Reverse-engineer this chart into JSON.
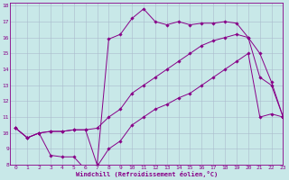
{
  "xlabel": "Windchill (Refroidissement éolien,°C)",
  "xlim": [
    -0.5,
    23
  ],
  "ylim": [
    8,
    18.2
  ],
  "yticks": [
    8,
    9,
    10,
    11,
    12,
    13,
    14,
    15,
    16,
    17,
    18
  ],
  "xticks": [
    0,
    1,
    2,
    3,
    4,
    5,
    6,
    7,
    8,
    9,
    10,
    11,
    12,
    13,
    14,
    15,
    16,
    17,
    18,
    19,
    20,
    21,
    22,
    23
  ],
  "bg_color": "#c8e8e8",
  "grid_color": "#aabbcc",
  "line_color": "#880088",
  "curve1_x": [
    0,
    1,
    2,
    3,
    4,
    5,
    6,
    7,
    8,
    9,
    10,
    11,
    12,
    13,
    14,
    15,
    16,
    17,
    18,
    19,
    20,
    21,
    22,
    23
  ],
  "curve1_y": [
    10.3,
    9.7,
    10.0,
    8.6,
    8.5,
    8.5,
    7.7,
    7.9,
    9.0,
    9.5,
    10.5,
    11.0,
    11.5,
    11.8,
    12.2,
    12.5,
    13.0,
    13.5,
    14.0,
    14.5,
    15.0,
    11.0,
    11.2,
    11.0
  ],
  "curve2_x": [
    0,
    1,
    2,
    3,
    4,
    5,
    6,
    7,
    8,
    9,
    10,
    11,
    12,
    13,
    14,
    15,
    16,
    17,
    18,
    19,
    20,
    21,
    22,
    23
  ],
  "curve2_y": [
    10.3,
    9.7,
    10.0,
    10.1,
    10.1,
    10.2,
    10.2,
    10.3,
    11.0,
    11.5,
    12.5,
    13.0,
    13.5,
    14.0,
    14.5,
    15.0,
    15.5,
    15.8,
    16.0,
    16.2,
    16.0,
    13.5,
    13.0,
    11.0
  ],
  "curve3_x": [
    0,
    1,
    2,
    3,
    4,
    5,
    6,
    7,
    8,
    9,
    10,
    11,
    12,
    13,
    14,
    15,
    16,
    17,
    18,
    19,
    20,
    21,
    22,
    23
  ],
  "curve3_y": [
    10.3,
    9.7,
    10.0,
    10.1,
    10.1,
    10.2,
    10.2,
    8.0,
    15.9,
    16.2,
    17.2,
    17.8,
    17.0,
    16.8,
    17.0,
    16.8,
    16.9,
    16.9,
    17.0,
    16.9,
    16.0,
    15.0,
    13.2,
    11.0
  ]
}
